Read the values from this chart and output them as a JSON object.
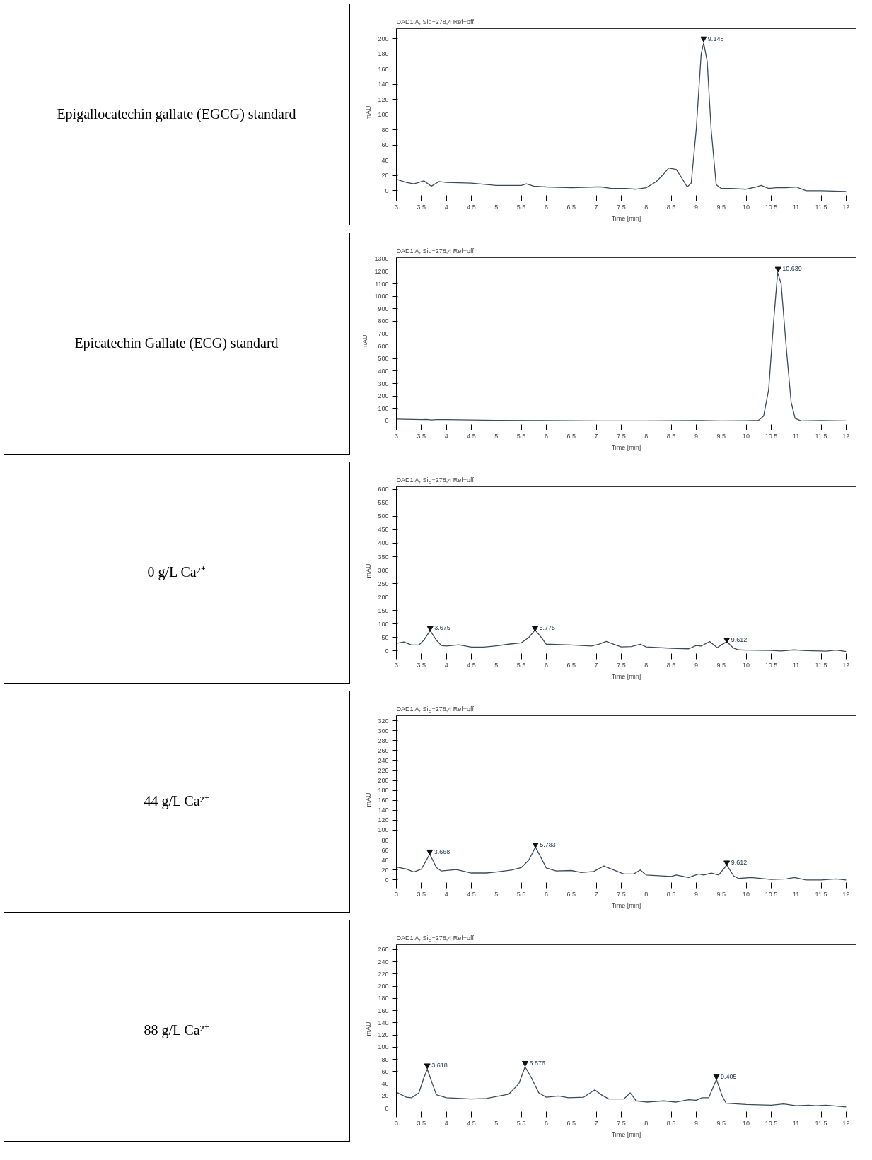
{
  "chart_data": [
    {
      "type": "line",
      "title": "DAD1 A, Sig=278,4 Ref=off",
      "xlabel": "Time [min]",
      "ylabel": "mAU",
      "xlim": [
        3,
        12.2
      ],
      "ylim": [
        -8,
        213
      ],
      "xticks": [
        3,
        3.5,
        4,
        4.5,
        5,
        5.5,
        6,
        6.5,
        7,
        7.5,
        8,
        8.5,
        9,
        9.5,
        10,
        10.5,
        11,
        11.5,
        12
      ],
      "yticks": [
        0,
        20,
        40,
        60,
        80,
        100,
        120,
        140,
        160,
        180,
        200
      ],
      "series": [
        {
          "color": "#3d4a5a",
          "x": [
            3,
            3.2,
            3.35,
            3.55,
            3.7,
            3.85,
            4,
            4.5,
            5,
            5.5,
            5.6,
            5.75,
            6,
            6.5,
            7,
            7.1,
            7.3,
            7.6,
            7.8,
            8,
            8.2,
            8.35,
            8.45,
            8.6,
            8.7,
            8.82,
            8.9,
            9,
            9.1,
            9.15,
            9.22,
            9.3,
            9.4,
            9.5,
            9.7,
            10,
            10.2,
            10.3,
            10.45,
            10.6,
            10.8,
            11,
            11.2,
            11.5,
            12
          ],
          "values": [
            15,
            11,
            9,
            13,
            6,
            12,
            11,
            10,
            7,
            7,
            9,
            6,
            5,
            4,
            5,
            5,
            3,
            3,
            2,
            4,
            12,
            22,
            30,
            28,
            18,
            5,
            10,
            80,
            180,
            194,
            170,
            80,
            8,
            3,
            3,
            2,
            5,
            7,
            3,
            4,
            4,
            5,
            0,
            0,
            -1
          ]
        }
      ],
      "annotations": [
        "Epigallocatechin gallate (EGCG) standard",
        {
          "text": "9.148",
          "x": 9.148,
          "y": 200
        }
      ]
    },
    {
      "type": "line",
      "title": "DAD1 A, Sig=278,4 Ref=off",
      "xlabel": "Time [min]",
      "ylabel": "mAU",
      "xlim": [
        3,
        12.2
      ],
      "ylim": [
        -40,
        1310
      ],
      "xticks": [
        3,
        3.5,
        4,
        4.5,
        5,
        5.5,
        6,
        6.5,
        7,
        7.5,
        8,
        8.5,
        9,
        9.5,
        10,
        10.5,
        11,
        11.5,
        12
      ],
      "yticks": [
        0,
        100,
        200,
        300,
        400,
        500,
        600,
        700,
        800,
        900,
        1000,
        1100,
        1200,
        1300
      ],
      "series": [
        {
          "color": "#3d4a5a",
          "x": [
            3,
            3.5,
            3.6,
            3.7,
            3.8,
            4,
            5,
            6,
            7,
            8,
            9,
            9.1,
            9.5,
            10,
            10.25,
            10.35,
            10.45,
            10.55,
            10.63,
            10.7,
            10.8,
            10.9,
            10.98,
            11.1,
            11.5,
            12
          ],
          "values": [
            15,
            10,
            12,
            7,
            10,
            10,
            5,
            3,
            0,
            0,
            3,
            3,
            0,
            2,
            5,
            40,
            250,
            800,
            1190,
            1100,
            600,
            150,
            20,
            0,
            3,
            0
          ]
        }
      ],
      "annotations": [
        "Epicatechin Gallate (ECG) standard",
        {
          "text": "10.639",
          "x": 10.639,
          "y": 1220
        }
      ]
    },
    {
      "type": "line",
      "title": "DAD1 A, Sig=278,4 Ref=off",
      "xlabel": "Time [min]",
      "ylabel": "mAU",
      "xlim": [
        3,
        12.2
      ],
      "ylim": [
        -15,
        610
      ],
      "xticks": [
        3,
        3.5,
        4,
        4.5,
        5,
        5.5,
        6,
        6.5,
        7,
        7.5,
        8,
        8.5,
        9,
        9.5,
        10,
        10.5,
        11,
        11.5,
        12
      ],
      "yticks": [
        0,
        50,
        100,
        150,
        200,
        250,
        300,
        350,
        400,
        450,
        500,
        550,
        600
      ],
      "series": [
        {
          "color": "#3d4a5a",
          "x": [
            3,
            3.15,
            3.3,
            3.45,
            3.55,
            3.675,
            3.8,
            3.9,
            4,
            4.25,
            4.5,
            4.75,
            5,
            5.25,
            5.5,
            5.65,
            5.775,
            5.9,
            6,
            6.5,
            6.9,
            7.05,
            7.2,
            7.35,
            7.5,
            7.7,
            7.88,
            8,
            8.5,
            8.85,
            9,
            9.1,
            9.27,
            9.42,
            9.5,
            9.612,
            9.75,
            9.85,
            10,
            10.5,
            10.7,
            10.95,
            11.2,
            11.6,
            11.8,
            12
          ],
          "values": [
            28,
            33,
            22,
            22,
            40,
            76,
            40,
            20,
            18,
            23,
            14,
            14,
            19,
            25,
            30,
            50,
            78,
            50,
            25,
            22,
            18,
            25,
            35,
            25,
            15,
            16,
            25,
            15,
            10,
            8,
            20,
            18,
            35,
            12,
            22,
            34,
            10,
            4,
            3,
            2,
            0,
            4,
            1,
            -1,
            3,
            -2
          ]
        }
      ],
      "annotations": [
        "0 g/L Ca²⁺",
        {
          "text": "3.675",
          "x": 3.675,
          "y": 85
        },
        {
          "text": "5.775",
          "x": 5.775,
          "y": 85
        },
        {
          "text": "9.612",
          "x": 9.612,
          "y": 42
        }
      ]
    },
    {
      "type": "line",
      "title": "DAD1 A, Sig=278,4 Ref=off",
      "xlabel": "Time [min]",
      "ylabel": "mAU",
      "xlim": [
        3,
        12.2
      ],
      "ylim": [
        -8,
        330
      ],
      "xticks": [
        3,
        3.5,
        4,
        4.5,
        5,
        5.5,
        6,
        6.5,
        7,
        7.5,
        8,
        8.5,
        9,
        9.5,
        10,
        10.5,
        11,
        11.5,
        12
      ],
      "yticks": [
        0,
        20,
        40,
        60,
        80,
        100,
        120,
        140,
        160,
        180,
        200,
        220,
        240,
        260,
        280,
        300,
        320
      ],
      "series": [
        {
          "color": "#3d4a5a",
          "x": [
            3,
            3.2,
            3.35,
            3.5,
            3.668,
            3.8,
            3.9,
            4.2,
            4.5,
            4.8,
            5,
            5.3,
            5.5,
            5.65,
            5.783,
            5.92,
            6,
            6.2,
            6.5,
            6.7,
            6.95,
            7.15,
            7.3,
            7.55,
            7.75,
            7.88,
            8,
            8.5,
            8.6,
            8.85,
            9.05,
            9.15,
            9.3,
            9.45,
            9.612,
            9.75,
            9.85,
            10.1,
            10.5,
            10.8,
            10.97,
            11.2,
            11.5,
            11.8,
            12
          ],
          "values": [
            26,
            22,
            16,
            22,
            52,
            25,
            18,
            21,
            14,
            14,
            16,
            20,
            25,
            40,
            66,
            40,
            24,
            18,
            19,
            15,
            17,
            28,
            22,
            12,
            12,
            20,
            10,
            7,
            10,
            5,
            12,
            10,
            14,
            10,
            30,
            8,
            3,
            5,
            1,
            2,
            5,
            0,
            0,
            2,
            0
          ]
        }
      ],
      "annotations": [
        "44 g/L Ca²⁺",
        {
          "text": "3.668",
          "x": 3.668,
          "y": 57
        },
        {
          "text": "5.783",
          "x": 5.783,
          "y": 71
        },
        {
          "text": "9.612",
          "x": 9.612,
          "y": 35
        }
      ]
    },
    {
      "type": "line",
      "title": "DAD1 A, Sig=278,4 Ref=off",
      "xlabel": "Time [min]",
      "ylabel": "mAU",
      "xlim": [
        3,
        12.2
      ],
      "ylim": [
        -8,
        268
      ],
      "xticks": [
        3,
        3.5,
        4,
        4.5,
        5,
        5.5,
        6,
        6.5,
        7,
        7.5,
        8,
        8.5,
        9,
        9.5,
        10,
        10.5,
        11,
        11.5,
        12
      ],
      "yticks": [
        0,
        20,
        40,
        60,
        80,
        100,
        120,
        140,
        160,
        180,
        200,
        220,
        240,
        260
      ],
      "series": [
        {
          "color": "#3d4a5a",
          "x": [
            3,
            3.2,
            3.3,
            3.45,
            3.55,
            3.618,
            3.72,
            3.8,
            4,
            4.3,
            4.5,
            4.8,
            5,
            5.25,
            5.45,
            5.576,
            5.7,
            5.85,
            6,
            6.25,
            6.45,
            6.75,
            6.97,
            7.1,
            7.25,
            7.55,
            7.68,
            7.8,
            8,
            8.35,
            8.6,
            8.85,
            9,
            9.12,
            9.25,
            9.405,
            9.52,
            9.6,
            10,
            10.5,
            10.75,
            11,
            11.25,
            11.4,
            11.6,
            12
          ],
          "values": [
            26,
            18,
            17,
            25,
            50,
            64,
            40,
            22,
            17,
            16,
            15,
            16,
            19,
            23,
            40,
            68,
            50,
            25,
            18,
            20,
            17,
            18,
            30,
            22,
            15,
            15,
            25,
            12,
            10,
            12,
            10,
            14,
            13,
            17,
            17,
            47,
            20,
            8,
            6,
            5,
            7,
            4,
            5,
            4,
            5,
            2
          ]
        }
      ],
      "annotations": [
        "88 g/L Ca²⁺",
        {
          "text": "3.618",
          "x": 3.618,
          "y": 70
        },
        {
          "text": "5.576",
          "x": 5.576,
          "y": 74
        },
        {
          "text": "9.405",
          "x": 9.405,
          "y": 52
        }
      ]
    }
  ]
}
